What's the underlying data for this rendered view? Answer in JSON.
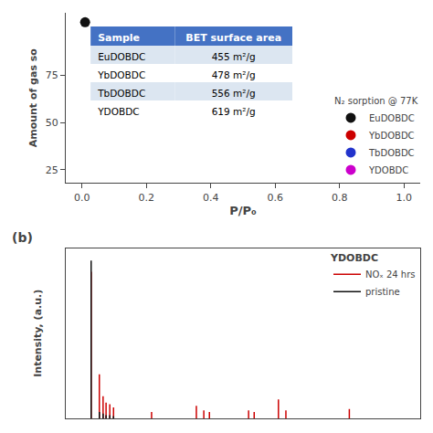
{
  "chart_data": [
    {
      "type": "scatter",
      "x": [
        0.01
      ],
      "series": [
        {
          "name": "EuDOBDC",
          "color": "#111111",
          "values": [
            103
          ]
        },
        {
          "name": "YbDOBDC",
          "color": "#cc0000",
          "values": [
            null
          ]
        },
        {
          "name": "TbDOBDC",
          "color": "#2233cc",
          "values": [
            null
          ]
        },
        {
          "name": "YDOBDC",
          "color": "#cc00cc",
          "values": [
            null
          ]
        }
      ],
      "xlabel": "P/P₀",
      "ylabel": "Amount of gas so",
      "xlim": [
        -0.05,
        1.05
      ],
      "ylim": [
        18,
        108
      ],
      "xticks": [
        {
          "value": 0.0,
          "label": "0.0"
        },
        0.2,
        0.4,
        0.6,
        0.8,
        {
          "value": 1.0,
          "label": "1.0"
        }
      ],
      "yticks": [
        25,
        50,
        75
      ],
      "grid": false,
      "legend": "lower right",
      "legend_title": "N₂ sorption @ 77K",
      "table": {
        "columns": [
          "Sample",
          "BET surface area"
        ],
        "rows": [
          [
            "EuDOBDC",
            "455 m²/g"
          ],
          [
            "YbDOBDC",
            "478 m²/g"
          ],
          [
            "TbDOBDC",
            "556 m²/g"
          ],
          [
            "YDOBDC",
            "619 m²/g"
          ]
        ],
        "header_color": "#4472c4",
        "row_colors": [
          "#dce6f1",
          "#ffffff",
          "#dce6f1",
          "#ffffff"
        ],
        "header_text_color": "#ffffff",
        "cell_text_color": "#000000"
      }
    },
    {
      "type": "stem",
      "series": [
        {
          "name": "NOₓ 24 hrs",
          "color": "#cc0000",
          "x": [
            0.068,
            0.09,
            0.1,
            0.108,
            0.118,
            0.128,
            0.23,
            0.35,
            0.37,
            0.385,
            0.49,
            0.505,
            0.57,
            0.59,
            0.76
          ],
          "values": [
            0.93,
            0.28,
            0.14,
            0.1,
            0.09,
            0.07,
            0.04,
            0.08,
            0.05,
            0.04,
            0.05,
            0.04,
            0.12,
            0.05,
            0.06
          ]
        },
        {
          "name": "pristine",
          "color": "#111111",
          "x": [
            0.068,
            0.09,
            0.1,
            0.108,
            0.118,
            0.128
          ],
          "values": [
            1.0,
            0.04,
            0.03,
            0.02,
            0.02,
            0.015
          ]
        }
      ],
      "ylabel": "Intensity, (a.u.)",
      "xlim": [
        0.0,
        0.95
      ],
      "ylim": [
        0.0,
        1.08
      ],
      "tick_labels": false,
      "grid": false,
      "legend": "upper right",
      "legend_title": "YDOBDC",
      "annotations": [
        "(b)"
      ]
    }
  ]
}
